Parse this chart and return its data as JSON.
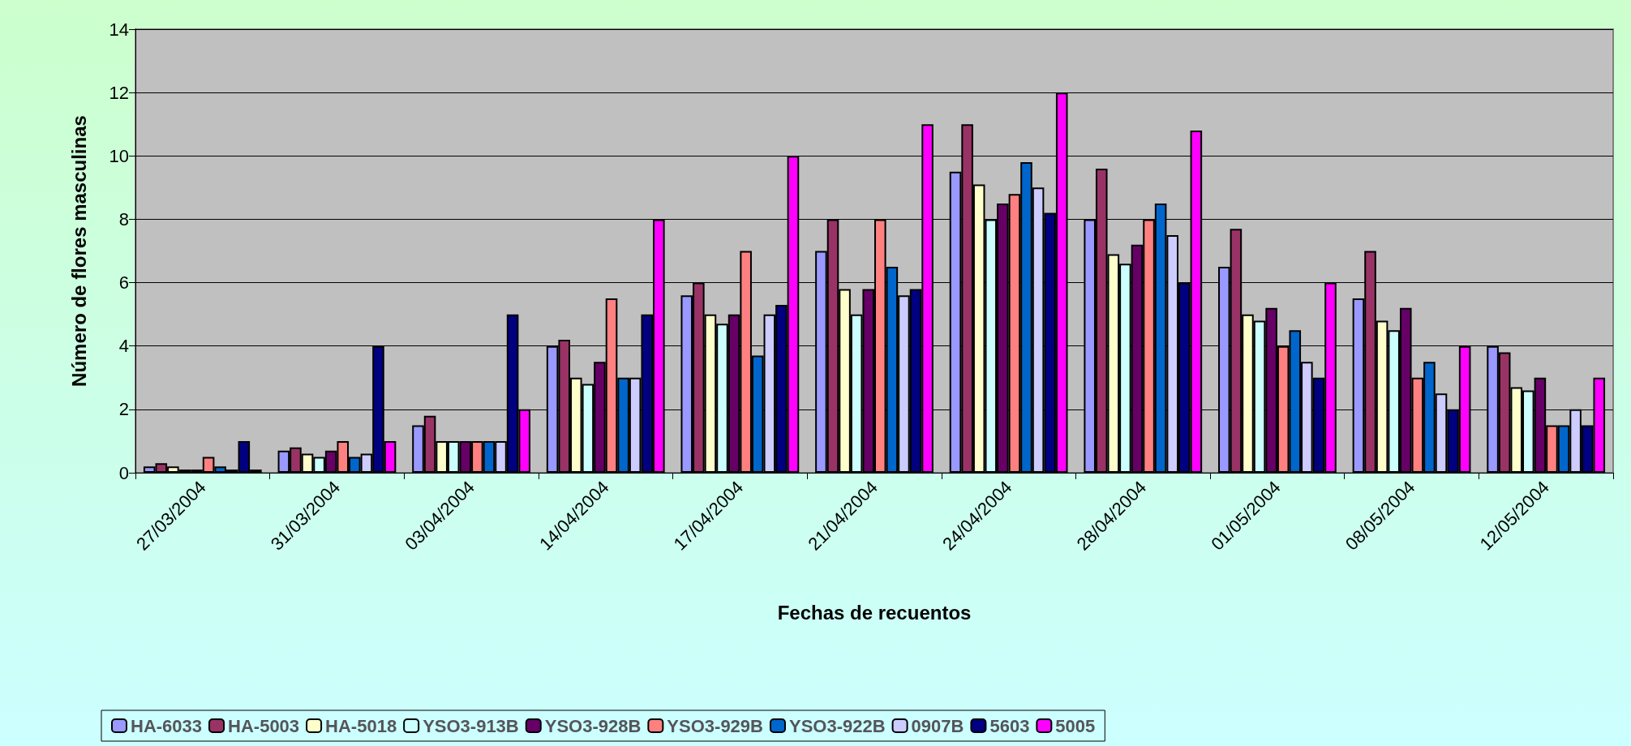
{
  "chart_data": {
    "type": "bar",
    "xlabel": "Fechas de recuentos",
    "ylabel": "Número de flores masculinas",
    "categories": [
      "27/03/2004",
      "31/03/2004",
      "03/04/2004",
      "14/04/2004",
      "17/04/2004",
      "21/04/2004",
      "24/04/2004",
      "28/04/2004",
      "01/05/2004",
      "08/05/2004",
      "12/05/2004"
    ],
    "ylim": [
      0,
      14
    ],
    "yticks": [
      0,
      2,
      4,
      6,
      8,
      10,
      12,
      14
    ],
    "grid": "y",
    "legend": "bottom",
    "series": [
      {
        "name": "HA-6033",
        "color": "#9999ff",
        "values": [
          0.2,
          0.7,
          1.5,
          4,
          5.6,
          7,
          9.5,
          8,
          6.5,
          5.5,
          4
        ]
      },
      {
        "name": "HA-5003",
        "color": "#993366",
        "values": [
          0.3,
          0.8,
          1.8,
          4.2,
          6,
          8,
          11,
          9.6,
          7.7,
          7,
          3.8
        ]
      },
      {
        "name": "HA-5018",
        "color": "#ffffcc",
        "values": [
          0.2,
          0.6,
          1,
          3,
          5,
          5.8,
          9.1,
          6.9,
          5,
          4.8,
          2.7
        ]
      },
      {
        "name": "YSO3-913B",
        "color": "#ccffff",
        "values": [
          0.1,
          0.5,
          1,
          2.8,
          4.7,
          5,
          8,
          6.6,
          4.8,
          4.5,
          2.6
        ]
      },
      {
        "name": "YSO3-928B",
        "color": "#660066",
        "values": [
          0.1,
          0.7,
          1,
          3.5,
          5,
          5.8,
          8.5,
          7.2,
          5.2,
          5.2,
          3
        ]
      },
      {
        "name": "YSO3-929B",
        "color": "#ff8080",
        "values": [
          0.5,
          1,
          1,
          5.5,
          7,
          8,
          8.8,
          8,
          4,
          3,
          1.5
        ]
      },
      {
        "name": "YSO3-922B",
        "color": "#0066cc",
        "values": [
          0.2,
          0.5,
          1,
          3,
          3.7,
          6.5,
          9.8,
          8.5,
          4.5,
          3.5,
          1.5
        ]
      },
      {
        "name": "0907B",
        "color": "#ccccff",
        "values": [
          0.1,
          0.6,
          1,
          3,
          5,
          5.6,
          9,
          7.5,
          3.5,
          2.5,
          2
        ]
      },
      {
        "name": "5603",
        "color": "#000080",
        "values": [
          1,
          4,
          5,
          5,
          5.3,
          5.8,
          8.2,
          6,
          3,
          2,
          1.5
        ]
      },
      {
        "name": "5005",
        "color": "#ff00ff",
        "values": [
          0.1,
          1,
          2,
          8,
          10,
          11,
          12,
          10.8,
          6,
          4,
          3
        ]
      }
    ]
  }
}
